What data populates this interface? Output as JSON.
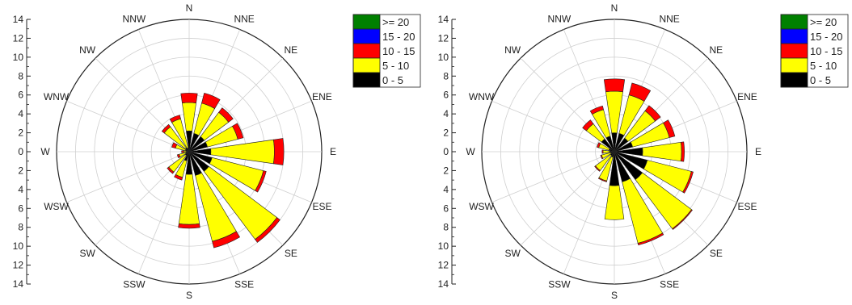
{
  "legend": [
    {
      "label": ">= 20",
      "color": "#008000"
    },
    {
      "label": "15 - 20",
      "color": "#0000ff"
    },
    {
      "label": "10 - 15",
      "color": "#ff0000"
    },
    {
      "label": "5 - 10",
      "color": "#ffff00"
    },
    {
      "label": "0 - 5",
      "color": "#000000"
    }
  ],
  "chart_data": [
    {
      "type": "wind-rose",
      "directions": [
        "N",
        "NNE",
        "NE",
        "ENE",
        "E",
        "ESE",
        "SE",
        "SSE",
        "S",
        "SSW",
        "SW",
        "WSW",
        "W",
        "WNW",
        "NW",
        "NNW"
      ],
      "rlim": [
        0,
        14
      ],
      "rticks": [
        0,
        2,
        4,
        6,
        8,
        10,
        12,
        14
      ],
      "grid": true,
      "legend_position": "top-right",
      "series": [
        {
          "name": "0 - 5",
          "values": [
            2.2,
            2.0,
            2.0,
            2.0,
            2.3,
            2.5,
            2.6,
            2.6,
            2.4,
            1.0,
            0.5,
            0.4,
            0.3,
            0.4,
            0.5,
            0.4
          ]
        },
        {
          "name": "5 - 10",
          "values": [
            3.0,
            3.3,
            3.2,
            3.3,
            6.7,
            5.6,
            9.0,
            7.2,
            5.3,
            1.8,
            2.2,
            0.7,
            0.3,
            1.1,
            2.8,
            3.2
          ]
        },
        {
          "name": "10 - 15",
          "values": [
            1.0,
            1.1,
            0.6,
            0.6,
            1.0,
            0.3,
            0.4,
            0.7,
            0.4,
            0.3,
            0.2,
            0.2,
            0.2,
            0.4,
            0.3,
            0.4
          ]
        },
        {
          "name": "15 - 20",
          "values": [
            0,
            0,
            0,
            0,
            0,
            0,
            0,
            0,
            0,
            0,
            0,
            0,
            0,
            0,
            0,
            0
          ]
        },
        {
          "name": ">= 20",
          "values": [
            0,
            0,
            0,
            0,
            0,
            0,
            0,
            0,
            0,
            0,
            0,
            0,
            0,
            0,
            0,
            0
          ]
        }
      ]
    },
    {
      "type": "wind-rose",
      "directions": [
        "N",
        "NNE",
        "NE",
        "ENE",
        "E",
        "ESE",
        "SE",
        "SSE",
        "S",
        "SSW",
        "SW",
        "WSW",
        "W",
        "WNW",
        "NW",
        "NNW"
      ],
      "rlim": [
        0,
        14
      ],
      "rticks": [
        0,
        2,
        4,
        6,
        8,
        10,
        12,
        14
      ],
      "grid": true,
      "legend_position": "top-right",
      "series": [
        {
          "name": "0 - 5",
          "values": [
            2.0,
            2.0,
            1.8,
            2.0,
            3.0,
            3.6,
            3.7,
            3.3,
            3.6,
            0.6,
            0.5,
            0.4,
            0.5,
            0.6,
            1.7,
            1.7
          ]
        },
        {
          "name": "5 - 10",
          "values": [
            4.4,
            4.2,
            3.6,
            4.0,
            4.1,
            4.8,
            6.5,
            6.7,
            3.6,
            2.6,
            2.0,
            1.0,
            0.7,
            1.1,
            2.0,
            2.9
          ]
        },
        {
          "name": "10 - 15",
          "values": [
            1.3,
            1.3,
            0.7,
            0.6,
            0.3,
            0.2,
            0.1,
            0.2,
            0.0,
            0.1,
            0.1,
            0.1,
            0.1,
            0.2,
            0.5,
            0.4
          ]
        },
        {
          "name": "15 - 20",
          "values": [
            0,
            0,
            0,
            0,
            0,
            0,
            0,
            0,
            0,
            0,
            0,
            0,
            0,
            0,
            0,
            0
          ]
        },
        {
          "name": ">= 20",
          "values": [
            0,
            0,
            0,
            0,
            0,
            0,
            0,
            0,
            0,
            0,
            0,
            0,
            0,
            0,
            0,
            0
          ]
        }
      ]
    }
  ]
}
